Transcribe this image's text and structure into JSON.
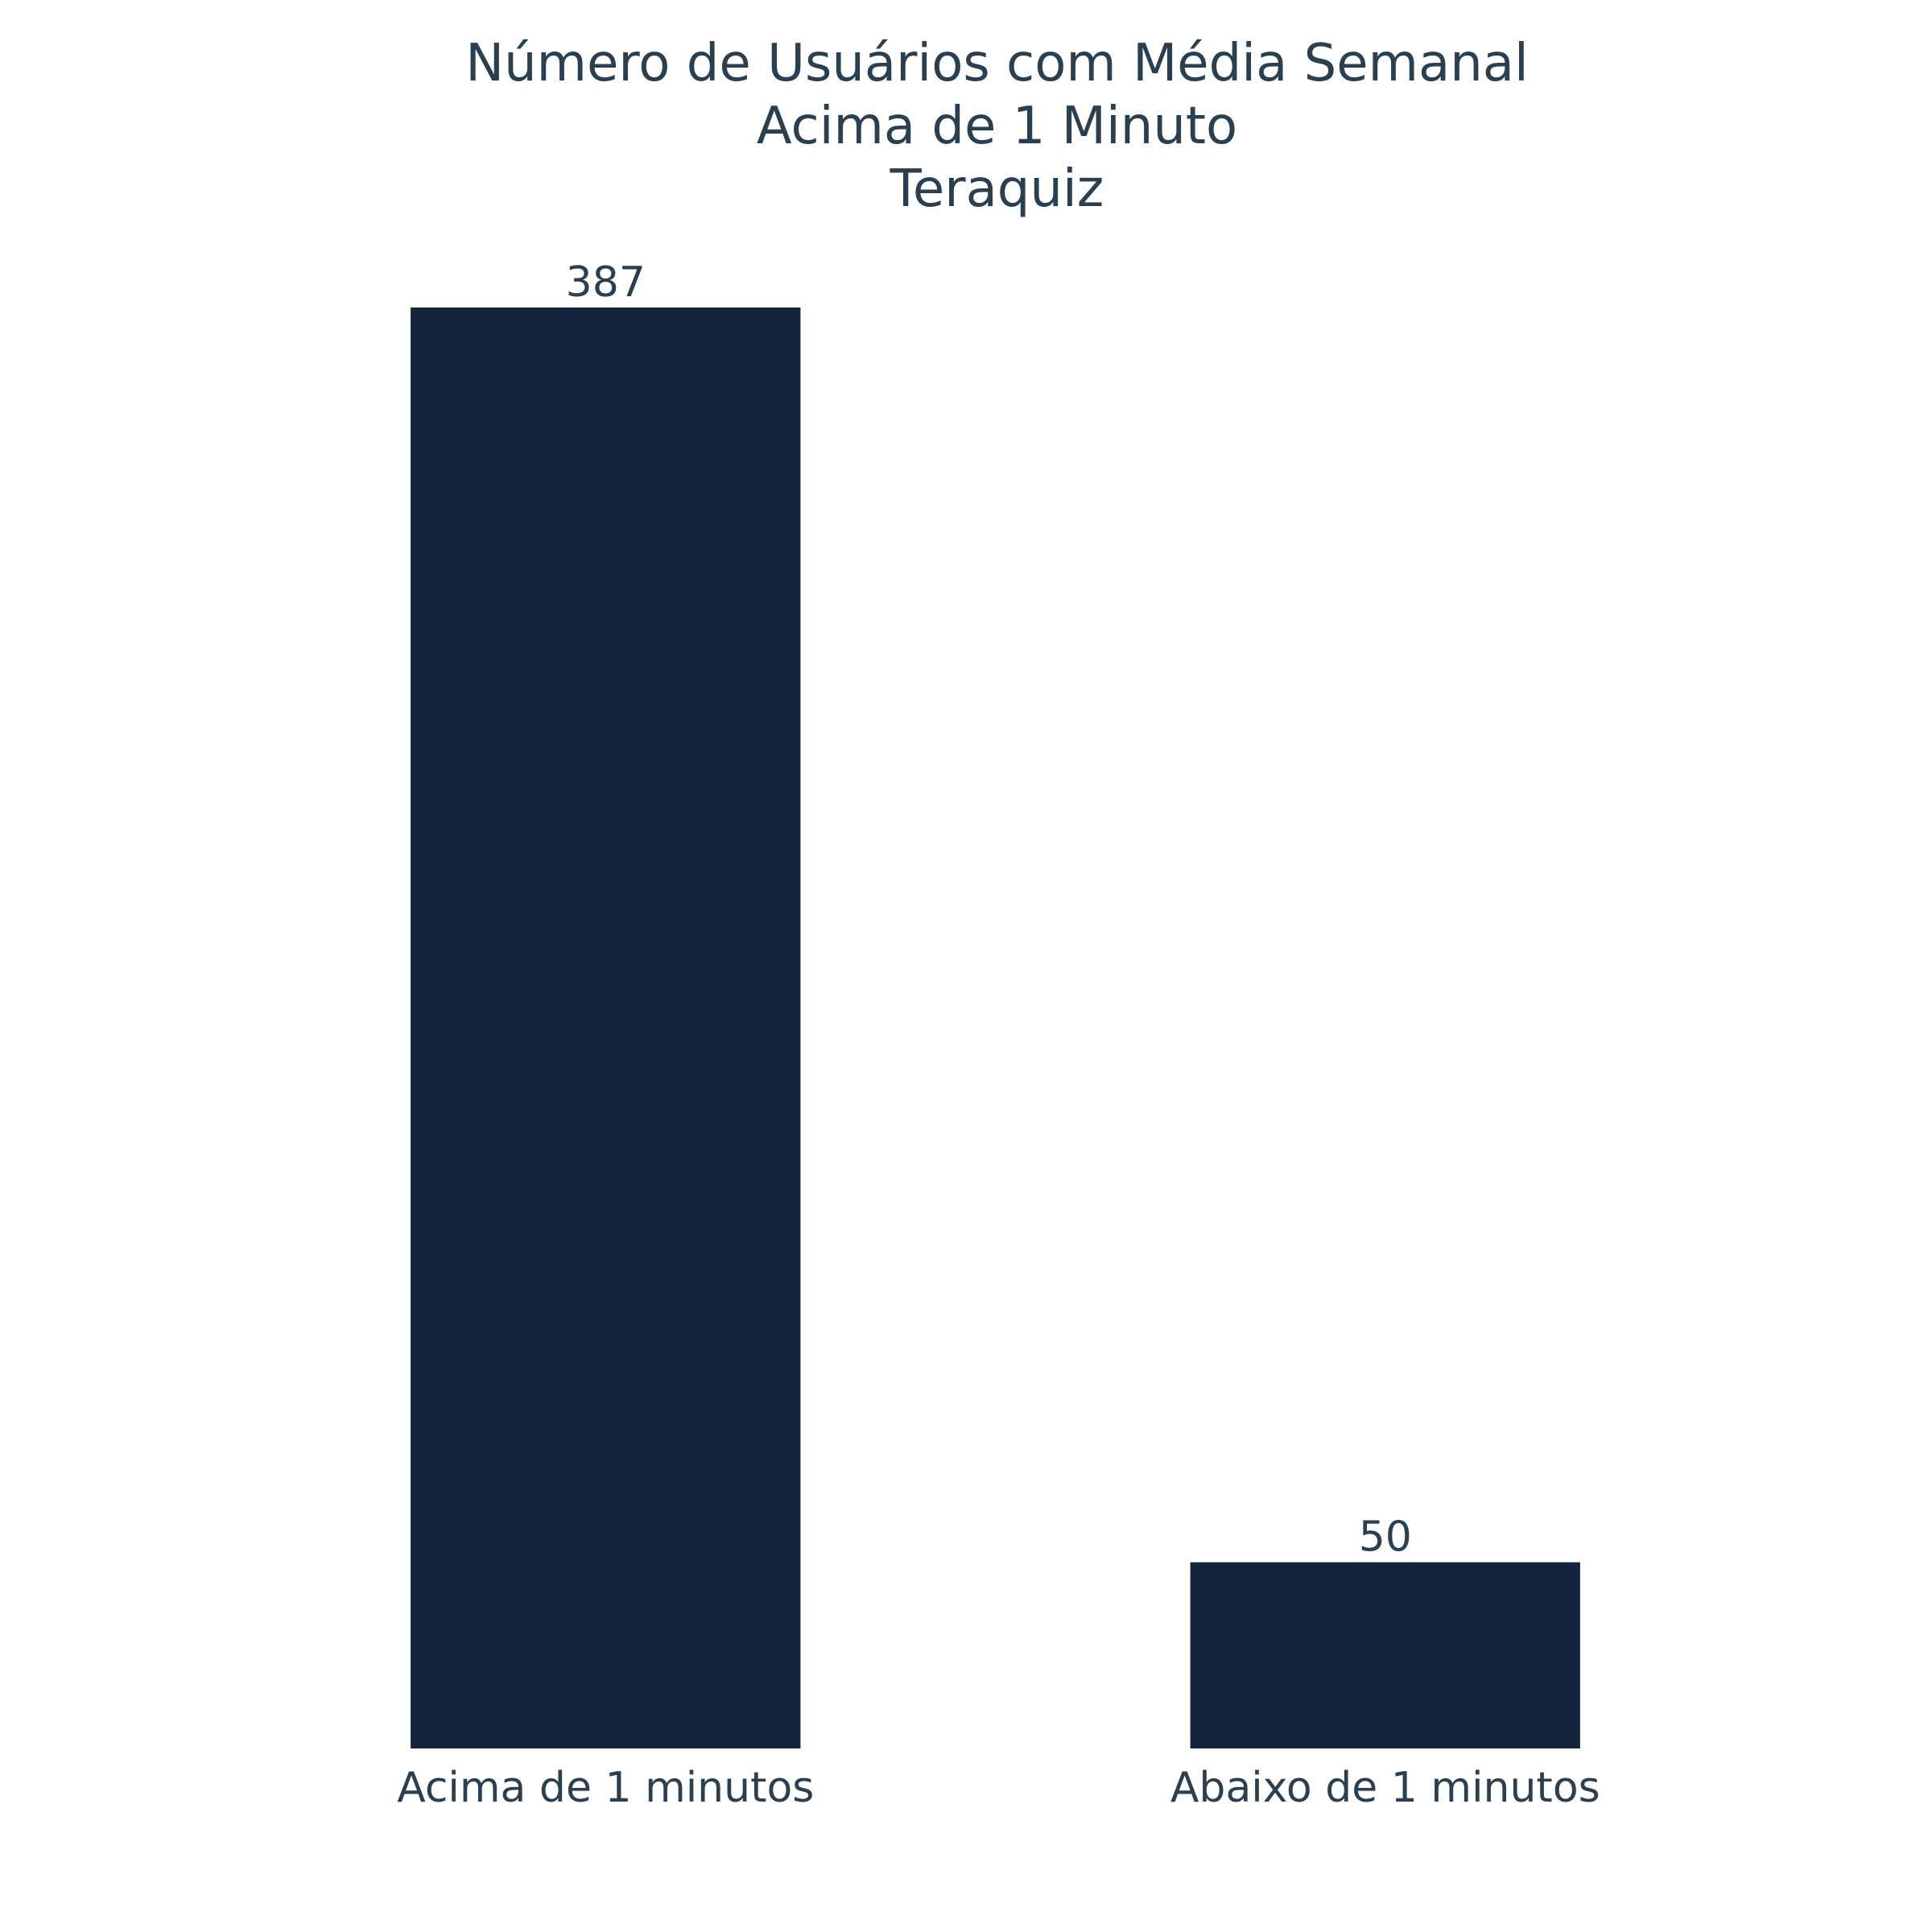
{
  "chart_data": {
    "type": "bar",
    "title_lines": [
      "Número de Usuários com Média Semanal",
      "Acima de 1 Minuto",
      "Teraquiz"
    ],
    "categories": [
      "Acima de 1 minutos",
      "Abaixo de 1 minutos"
    ],
    "values": [
      387,
      50
    ],
    "data_labels": [
      "387",
      "50"
    ],
    "xlabel": "",
    "ylabel": "",
    "ylim": [
      0,
      387
    ],
    "grid": false,
    "legend": "none",
    "bar_color": "#15243d",
    "text_color": "#2a3f4f"
  }
}
